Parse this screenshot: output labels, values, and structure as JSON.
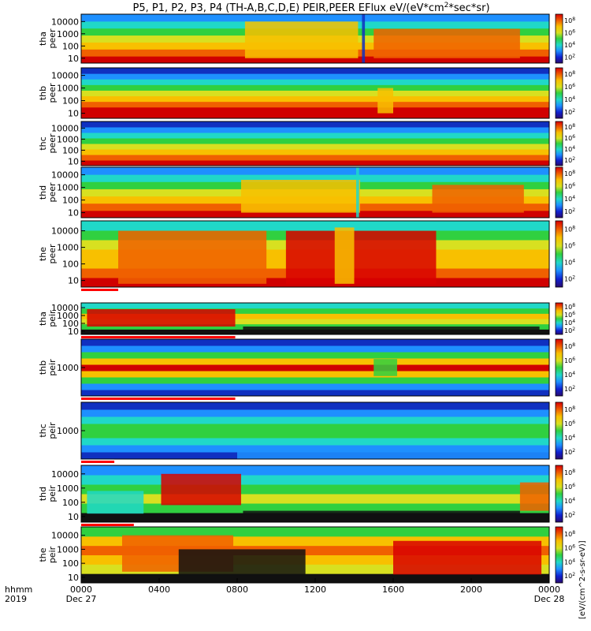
{
  "chart_data": {
    "type": "heatmap",
    "title": "P5, P1, P2, P3, P4 (TH-A,B,C,D,E) PEIR,PEER EFlux eV/(eV*cm",
    "title_sup": "2",
    "title_end": "*sec*sr)",
    "x_axis": {
      "label_lines": [
        "hhmm",
        "2019"
      ],
      "ticks": [
        "0000",
        "0400",
        "0800",
        "1200",
        "1600",
        "2000",
        "0000"
      ],
      "tick_hours": [
        0,
        4,
        8,
        12,
        16,
        20,
        24
      ],
      "date_labels": [
        "Dec 27",
        "Dec 28"
      ],
      "range_hours": [
        0,
        24
      ]
    },
    "colorbar": {
      "scale": "log",
      "tick_labels": [
        "10",
        "10",
        "10",
        "10"
      ],
      "tick_exponents": [
        "2",
        "4",
        "6",
        "8"
      ],
      "label": "[eV/(cm^2-s-sr-eV)]",
      "colors": [
        "#2a0a6e",
        "#1020d0",
        "#1e90ff",
        "#20d8c8",
        "#30d040",
        "#d8e020",
        "#f8c000",
        "#f06000",
        "#d80000"
      ]
    },
    "panels": [
      {
        "id": "tha-peer",
        "label_lines": [
          "tha",
          "peer"
        ],
        "yscale": "log",
        "y_ticks": [
          "10",
          "100",
          "1000",
          "10000"
        ]
      },
      {
        "id": "thb-peer",
        "label_lines": [
          "thb",
          "peer"
        ],
        "yscale": "log",
        "y_ticks": [
          "10",
          "100",
          "1000",
          "10000"
        ]
      },
      {
        "id": "thc-peer",
        "label_lines": [
          "thc",
          "peer"
        ],
        "yscale": "log",
        "y_ticks": [
          "10",
          "100",
          "1000",
          "10000"
        ]
      },
      {
        "id": "thd-peer",
        "label_lines": [
          "thd",
          "peer"
        ],
        "yscale": "log",
        "y_ticks": [
          "10",
          "100",
          "1000",
          "10000"
        ]
      },
      {
        "id": "the-peer",
        "label_lines": [
          "the",
          "peer"
        ],
        "yscale": "log",
        "y_ticks": [
          "10",
          "100",
          "1000",
          "10000"
        ]
      },
      {
        "id": "tha-peir",
        "label_lines": [
          "tha",
          "peir"
        ],
        "yscale": "log",
        "y_ticks": [
          "10",
          "100",
          "1000",
          "10000"
        ]
      },
      {
        "id": "thb-peir",
        "label_lines": [
          "thb",
          "peir"
        ],
        "yscale": "log",
        "y_ticks": [
          "1000"
        ]
      },
      {
        "id": "thc-peir",
        "label_lines": [
          "thc",
          "peir"
        ],
        "yscale": "log",
        "y_ticks": [
          "1000"
        ]
      },
      {
        "id": "thd-peir",
        "label_lines": [
          "thd",
          "peir"
        ],
        "yscale": "log",
        "y_ticks": [
          "10",
          "100",
          "1000",
          "10000"
        ]
      },
      {
        "id": "the-peir",
        "label_lines": [
          "the",
          "peir"
        ],
        "yscale": "log",
        "y_ticks": [
          "10",
          "100",
          "1000",
          "10000"
        ]
      }
    ]
  }
}
